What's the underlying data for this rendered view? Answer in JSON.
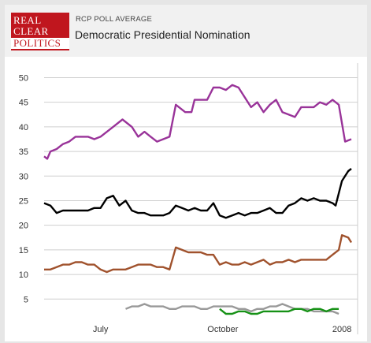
{
  "header": {
    "logo_lines": [
      "REAL",
      "CLEAR",
      "POLITICS"
    ],
    "subtitle": "RCP POLL AVERAGE",
    "title": "Democratic Presidential Nomination"
  },
  "chart_data": {
    "type": "line",
    "title": "Democratic Presidential Nomination",
    "subtitle": "RCP POLL AVERAGE",
    "xlabel": "",
    "ylabel": "",
    "ylim": [
      2,
      52
    ],
    "yticks": [
      5,
      10,
      15,
      20,
      25,
      30,
      35,
      40,
      45,
      50
    ],
    "xlim": [
      0,
      100
    ],
    "xticks": [
      {
        "label": "July",
        "x": 18
      },
      {
        "label": "October",
        "x": 57
      },
      {
        "label": "2008",
        "x": 95
      }
    ],
    "grid": true,
    "legend": "none",
    "series": [
      {
        "color": "#993399",
        "points": [
          [
            0,
            34
          ],
          [
            1,
            33.5
          ],
          [
            2,
            35
          ],
          [
            4,
            35.5
          ],
          [
            6,
            36.5
          ],
          [
            8,
            37
          ],
          [
            10,
            38
          ],
          [
            14,
            38
          ],
          [
            16,
            37.5
          ],
          [
            18,
            38
          ],
          [
            22,
            40
          ],
          [
            25,
            41.5
          ],
          [
            28,
            40
          ],
          [
            30,
            38
          ],
          [
            32,
            39
          ],
          [
            34,
            38
          ],
          [
            36,
            37
          ],
          [
            40,
            38
          ],
          [
            42,
            44.5
          ],
          [
            45,
            43
          ],
          [
            47,
            43
          ],
          [
            48,
            45.5
          ],
          [
            52,
            45.5
          ],
          [
            54,
            48
          ],
          [
            56,
            48
          ],
          [
            58,
            47.5
          ],
          [
            60,
            48.5
          ],
          [
            62,
            48
          ],
          [
            64,
            46
          ],
          [
            66,
            44
          ],
          [
            68,
            45
          ],
          [
            70,
            43
          ],
          [
            72,
            44.5
          ],
          [
            74,
            45.5
          ],
          [
            76,
            43
          ],
          [
            78,
            42.5
          ],
          [
            80,
            42
          ],
          [
            82,
            44
          ],
          [
            84,
            44
          ],
          [
            86,
            44
          ],
          [
            88,
            45
          ],
          [
            90,
            44.5
          ],
          [
            92,
            45.5
          ],
          [
            94,
            44.5
          ],
          [
            96,
            37
          ],
          [
            98,
            37.5
          ]
        ]
      },
      {
        "color": "#000000",
        "points": [
          [
            0,
            24.5
          ],
          [
            2,
            24
          ],
          [
            4,
            22.5
          ],
          [
            6,
            23
          ],
          [
            8,
            23
          ],
          [
            10,
            23
          ],
          [
            12,
            23
          ],
          [
            14,
            23
          ],
          [
            16,
            23.5
          ],
          [
            18,
            23.5
          ],
          [
            20,
            25.5
          ],
          [
            22,
            26
          ],
          [
            24,
            24
          ],
          [
            26,
            25
          ],
          [
            28,
            23
          ],
          [
            30,
            22.5
          ],
          [
            32,
            22.5
          ],
          [
            34,
            22
          ],
          [
            36,
            22
          ],
          [
            38,
            22
          ],
          [
            40,
            22.5
          ],
          [
            42,
            24
          ],
          [
            44,
            23.5
          ],
          [
            46,
            23
          ],
          [
            48,
            23.5
          ],
          [
            50,
            23
          ],
          [
            52,
            23
          ],
          [
            54,
            24.5
          ],
          [
            56,
            22
          ],
          [
            58,
            21.5
          ],
          [
            60,
            22
          ],
          [
            62,
            22.5
          ],
          [
            64,
            22
          ],
          [
            66,
            22.5
          ],
          [
            68,
            22.5
          ],
          [
            70,
            23
          ],
          [
            72,
            23.5
          ],
          [
            74,
            22.5
          ],
          [
            76,
            22.5
          ],
          [
            78,
            24
          ],
          [
            80,
            24.5
          ],
          [
            82,
            25.5
          ],
          [
            84,
            25
          ],
          [
            86,
            25.5
          ],
          [
            88,
            25
          ],
          [
            90,
            25
          ],
          [
            92,
            24.5
          ],
          [
            93,
            24
          ],
          [
            95,
            29
          ],
          [
            97,
            31
          ],
          [
            98,
            31.5
          ]
        ]
      },
      {
        "color": "#a0522d",
        "points": [
          [
            0,
            11
          ],
          [
            2,
            11
          ],
          [
            4,
            11.5
          ],
          [
            6,
            12
          ],
          [
            8,
            12
          ],
          [
            10,
            12.5
          ],
          [
            12,
            12.5
          ],
          [
            14,
            12
          ],
          [
            16,
            12
          ],
          [
            18,
            11
          ],
          [
            20,
            10.5
          ],
          [
            22,
            11
          ],
          [
            24,
            11
          ],
          [
            26,
            11
          ],
          [
            28,
            11.5
          ],
          [
            30,
            12
          ],
          [
            32,
            12
          ],
          [
            34,
            12
          ],
          [
            36,
            11.5
          ],
          [
            38,
            11.5
          ],
          [
            40,
            11
          ],
          [
            42,
            15.5
          ],
          [
            44,
            15
          ],
          [
            46,
            14.5
          ],
          [
            48,
            14.5
          ],
          [
            50,
            14.5
          ],
          [
            52,
            14
          ],
          [
            54,
            14
          ],
          [
            56,
            12
          ],
          [
            58,
            12.5
          ],
          [
            60,
            12
          ],
          [
            62,
            12
          ],
          [
            64,
            12.5
          ],
          [
            66,
            12
          ],
          [
            68,
            12.5
          ],
          [
            70,
            13
          ],
          [
            72,
            12
          ],
          [
            74,
            12.5
          ],
          [
            76,
            12.5
          ],
          [
            78,
            13
          ],
          [
            80,
            12.5
          ],
          [
            82,
            13
          ],
          [
            84,
            13
          ],
          [
            86,
            13
          ],
          [
            88,
            13
          ],
          [
            90,
            13
          ],
          [
            92,
            14
          ],
          [
            94,
            15
          ],
          [
            95,
            18
          ],
          [
            97,
            17.5
          ],
          [
            98,
            16.5
          ]
        ]
      },
      {
        "color": "#999999",
        "points": [
          [
            26,
            3
          ],
          [
            28,
            3.5
          ],
          [
            30,
            3.5
          ],
          [
            32,
            4
          ],
          [
            34,
            3.5
          ],
          [
            36,
            3.5
          ],
          [
            38,
            3.5
          ],
          [
            40,
            3
          ],
          [
            42,
            3
          ],
          [
            44,
            3.5
          ],
          [
            46,
            3.5
          ],
          [
            48,
            3.5
          ],
          [
            50,
            3
          ],
          [
            52,
            3
          ],
          [
            54,
            3.5
          ],
          [
            56,
            3.5
          ],
          [
            58,
            3.5
          ],
          [
            60,
            3.5
          ],
          [
            62,
            3
          ],
          [
            64,
            3
          ],
          [
            66,
            2.5
          ],
          [
            68,
            3
          ],
          [
            70,
            3
          ],
          [
            72,
            3.5
          ],
          [
            74,
            3.5
          ],
          [
            76,
            4
          ],
          [
            78,
            3.5
          ],
          [
            80,
            3
          ],
          [
            82,
            3
          ],
          [
            84,
            3
          ],
          [
            86,
            2.5
          ],
          [
            88,
            2.5
          ],
          [
            90,
            2.5
          ],
          [
            92,
            2.5
          ],
          [
            94,
            2
          ]
        ]
      },
      {
        "color": "#169116",
        "points": [
          [
            56,
            3
          ],
          [
            58,
            2
          ],
          [
            60,
            2
          ],
          [
            62,
            2.5
          ],
          [
            64,
            2.5
          ],
          [
            66,
            2
          ],
          [
            68,
            2
          ],
          [
            70,
            2.5
          ],
          [
            72,
            2.5
          ],
          [
            74,
            2.5
          ],
          [
            76,
            2.5
          ],
          [
            78,
            2.5
          ],
          [
            80,
            3
          ],
          [
            82,
            3
          ],
          [
            84,
            2.5
          ],
          [
            86,
            3
          ],
          [
            88,
            3
          ],
          [
            90,
            2.5
          ],
          [
            92,
            3
          ],
          [
            94,
            3
          ]
        ]
      }
    ]
  }
}
